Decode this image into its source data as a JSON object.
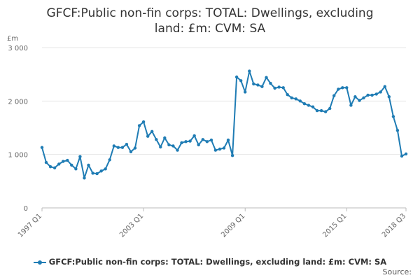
{
  "chart_data": {
    "type": "line",
    "title_line1": "GFCF:Public non-fin corps: TOTAL: Dwellings, excluding",
    "title_line2": "land: £m: CVM: SA",
    "ylabel": "£m",
    "ylim": [
      0,
      3000
    ],
    "yticks": [
      "0",
      "1 000",
      "2 000",
      "3 000"
    ],
    "ytick_values": [
      0,
      1000,
      2000,
      3000
    ],
    "xtick_labels": [
      "1997 Q1",
      "2003 Q1",
      "2009 Q1",
      "2015 Q1",
      "2018 Q3"
    ],
    "xtick_indices": [
      0,
      24,
      48,
      72,
      86
    ],
    "grid": true,
    "legend_position": "bottom",
    "color": "#1f7cb4",
    "series": [
      {
        "name": "GFCF:Public non-fin corps: TOTAL: Dwellings, excluding land: £m: CVM: SA",
        "values": [
          1130,
          850,
          770,
          750,
          820,
          870,
          890,
          800,
          730,
          960,
          560,
          800,
          650,
          640,
          690,
          730,
          900,
          1160,
          1130,
          1130,
          1190,
          1050,
          1120,
          1540,
          1610,
          1340,
          1430,
          1280,
          1140,
          1310,
          1180,
          1160,
          1080,
          1220,
          1240,
          1250,
          1350,
          1180,
          1280,
          1240,
          1270,
          1080,
          1100,
          1120,
          1270,
          980,
          2450,
          2380,
          2170,
          2560,
          2320,
          2300,
          2270,
          2440,
          2330,
          2240,
          2260,
          2250,
          2120,
          2060,
          2040,
          2000,
          1950,
          1920,
          1890,
          1820,
          1820,
          1800,
          1860,
          2100,
          2220,
          2250,
          2250,
          1920,
          2080,
          2010,
          2060,
          2110,
          2110,
          2130,
          2170,
          2270,
          2080,
          1710,
          1450,
          970,
          1010
        ]
      }
    ]
  },
  "legend": {
    "label": "GFCF:Public non-fin corps: TOTAL: Dwellings, excluding land: £m: CVM: SA"
  },
  "source": {
    "label": "Source:"
  }
}
